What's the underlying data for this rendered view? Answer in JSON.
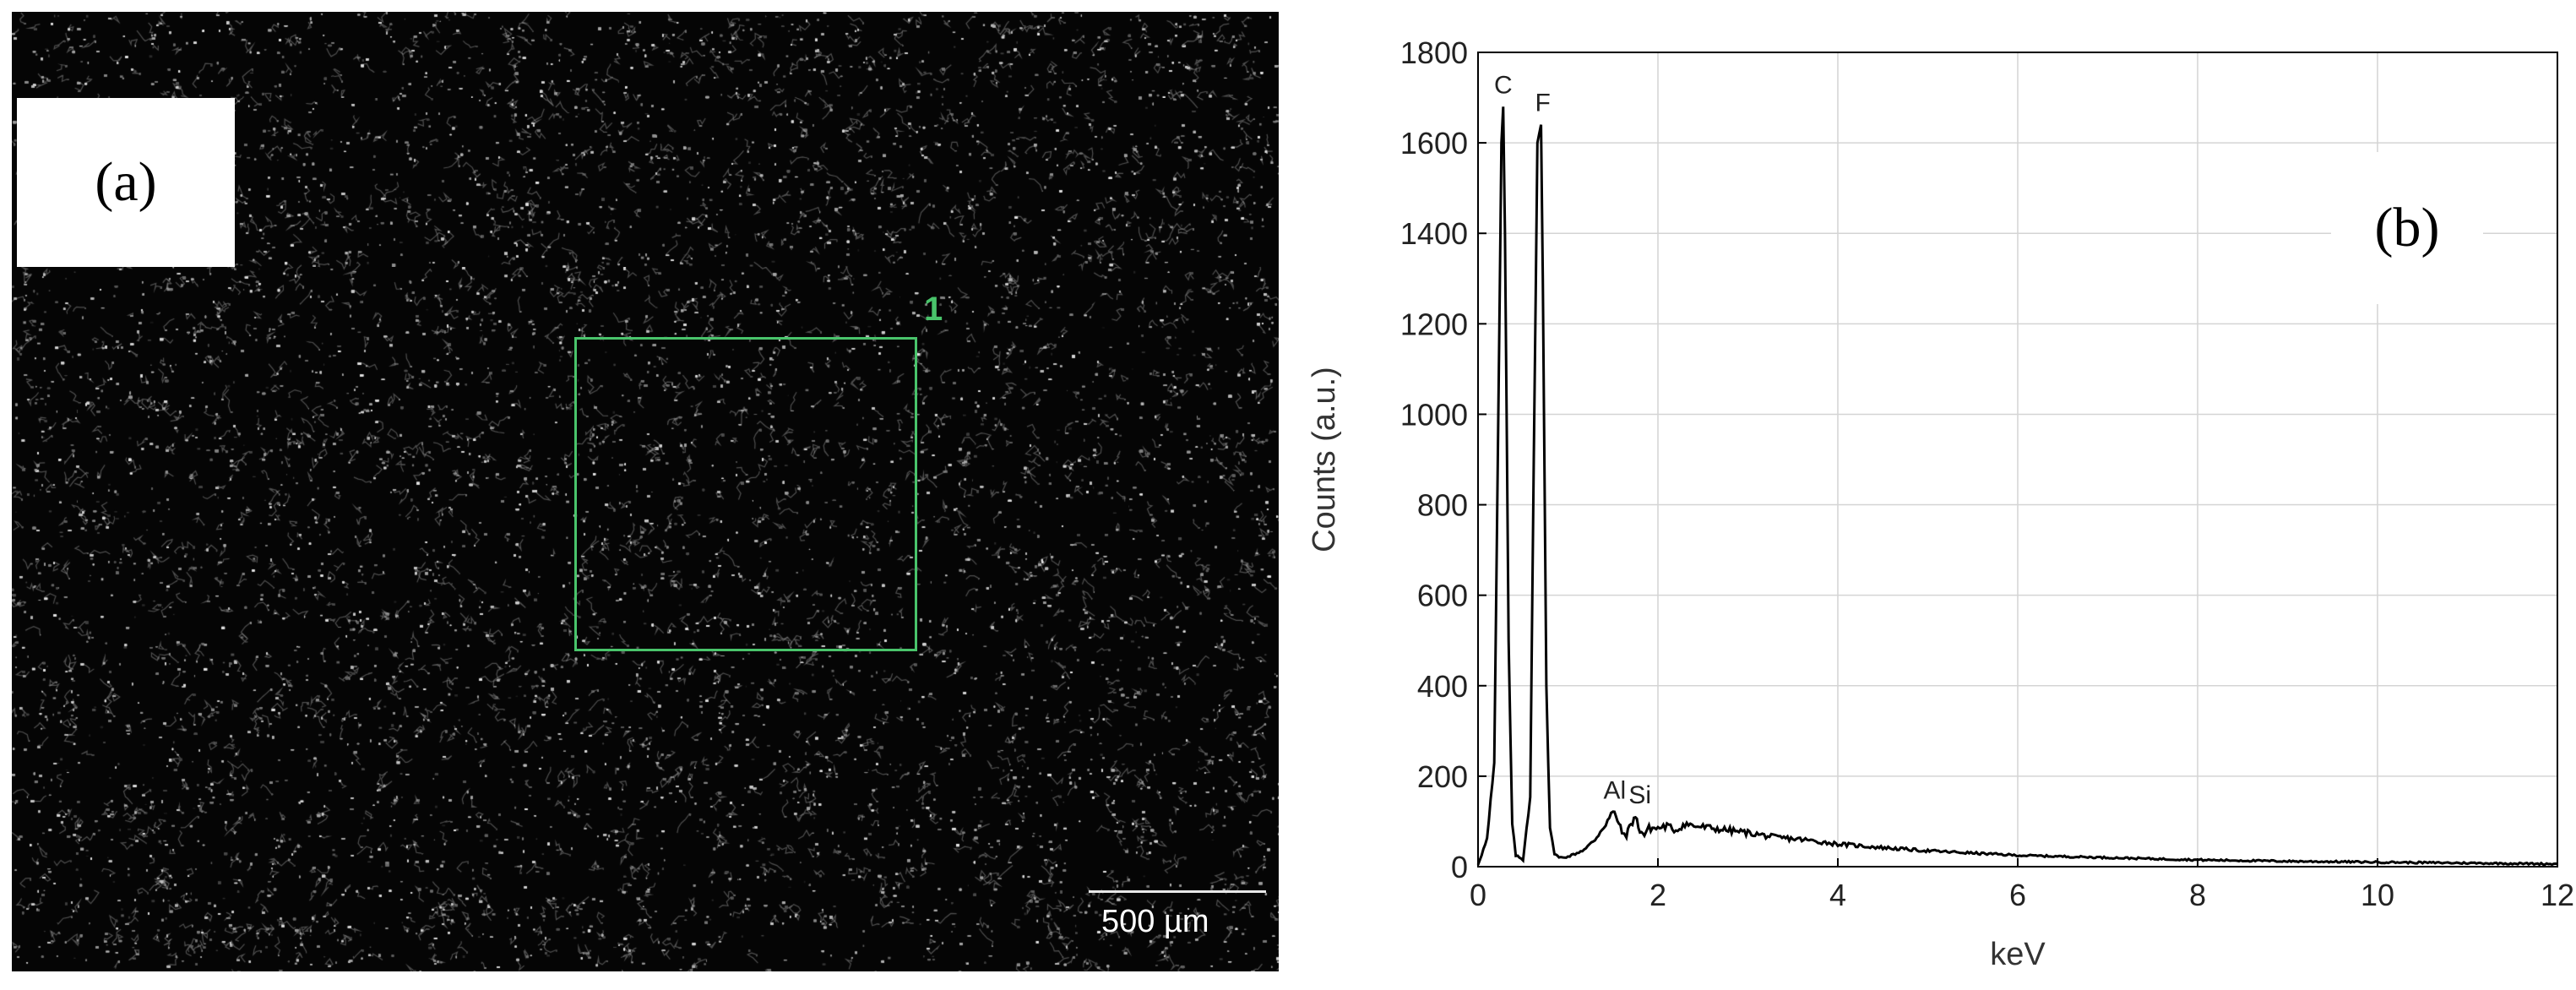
{
  "panel_a": {
    "label": "(a)",
    "roi_label": "1",
    "scale_bar": "500 µm",
    "colors": {
      "background": "#050505",
      "roi": "#49c46b"
    }
  },
  "panel_b": {
    "label": "(b)"
  },
  "chart_data": {
    "type": "line",
    "xlabel": "keV",
    "ylabel": "Counts (a.u.)",
    "xlim": [
      0,
      12
    ],
    "ylim": [
      0,
      1800
    ],
    "x_ticks": [
      0,
      2,
      4,
      6,
      8,
      10,
      12
    ],
    "y_ticks": [
      0,
      200,
      400,
      600,
      800,
      1000,
      1200,
      1400,
      1600,
      1800
    ],
    "grid": true,
    "series": [
      {
        "x": [
          0.0,
          0.1,
          0.18,
          0.22,
          0.26,
          0.28,
          0.3,
          0.34,
          0.38,
          0.42,
          0.5,
          0.58,
          0.62,
          0.66,
          0.7,
          0.72,
          0.76,
          0.8,
          0.85,
          0.9,
          1.0,
          1.1,
          1.2,
          1.3,
          1.4,
          1.5,
          1.55,
          1.6,
          1.65,
          1.7,
          1.75,
          1.8,
          1.85,
          1.9,
          2.0,
          2.1,
          2.2,
          2.3,
          2.4,
          2.6,
          2.8,
          3.0,
          3.3,
          3.6,
          4.0,
          4.5,
          5.0,
          5.5,
          6.0,
          7.0,
          8.0,
          9.0,
          10.0,
          11.0,
          12.0
        ],
        "y": [
          5,
          60,
          220,
          900,
          1600,
          1680,
          1400,
          500,
          90,
          25,
          15,
          160,
          900,
          1600,
          1640,
          1300,
          400,
          80,
          30,
          20,
          22,
          30,
          40,
          60,
          90,
          120,
          105,
          75,
          70,
          95,
          110,
          80,
          70,
          85,
          85,
          90,
          80,
          95,
          90,
          85,
          80,
          75,
          65,
          60,
          50,
          42,
          35,
          30,
          25,
          20,
          15,
          12,
          10,
          8,
          6
        ]
      }
    ],
    "annotations": [
      {
        "text": "C",
        "x": 0.28,
        "y": 1680
      },
      {
        "text": "F",
        "x": 0.72,
        "y": 1640
      },
      {
        "text": "Al",
        "x": 1.52,
        "y": 120
      },
      {
        "text": "Si",
        "x": 1.8,
        "y": 110
      }
    ]
  }
}
